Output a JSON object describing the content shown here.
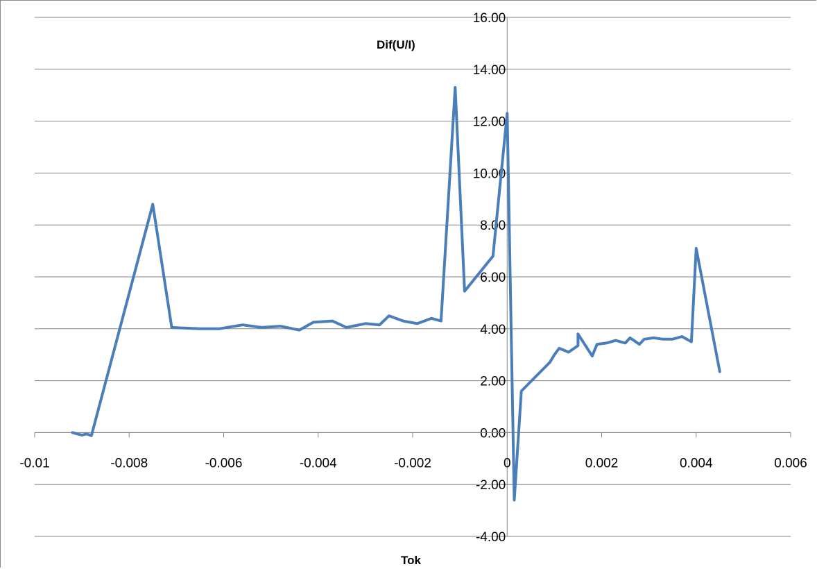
{
  "chart_data": {
    "type": "line",
    "xlabel": "Tok",
    "ylabel": "Dif(U/I)",
    "xlim": [
      -0.01,
      0.006
    ],
    "ylim": [
      -4,
      16
    ],
    "grid": "horizontal",
    "x_ticks": [
      "-0.01",
      "-0.008",
      "-0.006",
      "-0.004",
      "-0.002",
      "0",
      "0.002",
      "0.004",
      "0.006"
    ],
    "y_ticks": [
      "16.00",
      "14.00",
      "12.00",
      "10.00",
      "8.00",
      "6.00",
      "4.00",
      "2.00",
      "0.00",
      "-2.00",
      "-4.00"
    ],
    "series_color": "#4a7ebb",
    "series": [
      {
        "x": [
          -0.0092,
          -0.009,
          -0.0089,
          -0.0088,
          -0.0075,
          -0.0071,
          -0.0065,
          -0.0061,
          -0.0056,
          -0.0052,
          -0.0048,
          -0.0044,
          -0.0041,
          -0.0037,
          -0.0034,
          -0.003,
          -0.0027,
          -0.0025,
          -0.0022,
          -0.0019,
          -0.0016,
          -0.0014,
          -0.0011,
          -0.0009,
          -0.0003,
          0.0,
          0.00015,
          0.0003,
          0.0006,
          0.0009,
          0.001,
          0.0011,
          0.0013,
          0.0015,
          0.0015,
          0.0018,
          0.0019,
          0.0021,
          0.0023,
          0.0025,
          0.0026,
          0.0028,
          0.0029,
          0.0031,
          0.0033,
          0.0035,
          0.0037,
          0.0039,
          0.004,
          0.0045
        ],
        "y": [
          0.0,
          -0.1,
          -0.05,
          -0.12,
          8.8,
          4.05,
          4.0,
          4.0,
          4.15,
          4.05,
          4.1,
          3.95,
          4.25,
          4.3,
          4.05,
          4.2,
          4.15,
          4.5,
          4.3,
          4.2,
          4.4,
          4.3,
          13.3,
          5.45,
          6.8,
          12.3,
          -2.6,
          1.6,
          2.15,
          2.7,
          3.0,
          3.25,
          3.1,
          3.35,
          3.8,
          2.95,
          3.4,
          3.45,
          3.55,
          3.45,
          3.65,
          3.4,
          3.6,
          3.65,
          3.6,
          3.6,
          3.7,
          3.5,
          7.1,
          2.35
        ]
      }
    ]
  }
}
